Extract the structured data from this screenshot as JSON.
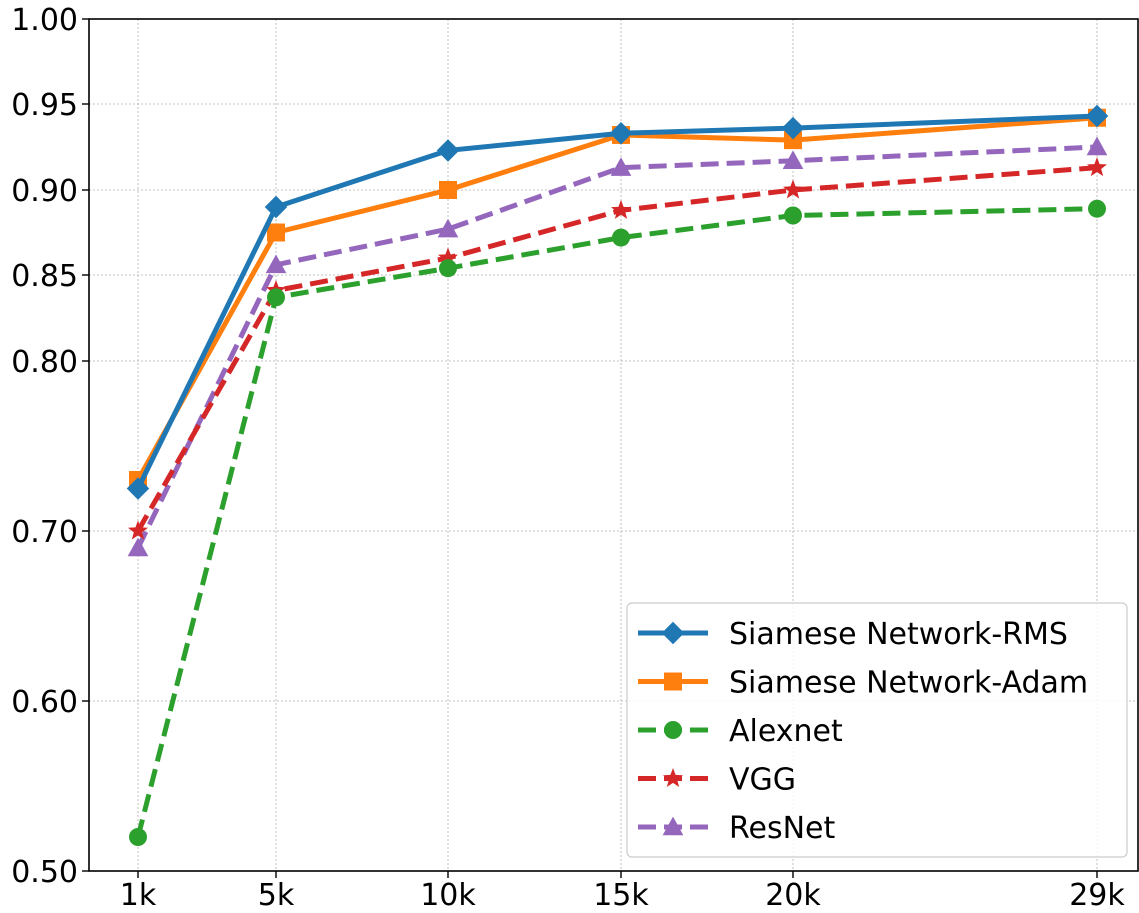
{
  "chart_data": {
    "type": "line",
    "title": "",
    "xlabel": "",
    "ylabel": "",
    "categories": [
      "1k",
      "5k",
      "10k",
      "15k",
      "20k",
      "29k"
    ],
    "x": [
      1,
      5,
      10,
      15,
      20,
      29
    ],
    "ylim": [
      0.5,
      1.0
    ],
    "yticks": [
      0.5,
      0.6,
      0.7,
      0.8,
      0.85,
      0.9,
      0.95,
      1.0
    ],
    "ytick_labels": [
      "0.50",
      "0.60",
      "0.70",
      "0.80",
      "0.85",
      "0.90",
      "0.95",
      "1.00"
    ],
    "y_scale_note": "non-uniform: 0.50-0.80 spans same height per 0.10 as 0.80-1.00 per 0.05",
    "grid": true,
    "legend_position": "lower-right",
    "series": [
      {
        "name": "Siamese Network-RMS",
        "color": "#1f77b4",
        "marker": "diamond",
        "linestyle": "solid",
        "values": [
          0.725,
          0.89,
          0.923,
          0.933,
          0.936,
          0.943
        ]
      },
      {
        "name": "Siamese Network-Adam",
        "color": "#ff7f0e",
        "marker": "square",
        "linestyle": "solid",
        "values": [
          0.73,
          0.875,
          0.9,
          0.932,
          0.929,
          0.942
        ]
      },
      {
        "name": "Alexnet",
        "color": "#2ca02c",
        "marker": "circle",
        "linestyle": "dashed",
        "values": [
          0.52,
          0.837,
          0.854,
          0.872,
          0.885,
          0.889
        ]
      },
      {
        "name": "VGG",
        "color": "#d62728",
        "marker": "star",
        "linestyle": "dashed",
        "values": [
          0.7,
          0.841,
          0.86,
          0.888,
          0.9,
          0.913
        ]
      },
      {
        "name": "ResNet",
        "color": "#9467bd",
        "marker": "triangle",
        "linestyle": "dashed",
        "values": [
          0.69,
          0.856,
          0.877,
          0.913,
          0.917,
          0.925
        ]
      }
    ]
  }
}
